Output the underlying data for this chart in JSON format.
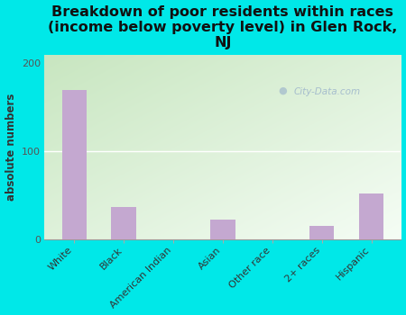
{
  "title": "Breakdown of poor residents within races\n(income below poverty level) in Glen Rock,\nNJ",
  "ylabel": "absolute numbers",
  "categories": [
    "White",
    "Black",
    "American Indian",
    "Asian",
    "Other race",
    "2+ races",
    "Hispanic"
  ],
  "values": [
    170,
    37,
    0,
    22,
    0,
    15,
    52
  ],
  "bar_color": "#c4a8d0",
  "background_color": "#00e8e8",
  "plot_bg_color_topleft": "#c8e6c0",
  "plot_bg_color_bottomright": "#f5fdf5",
  "ylim": [
    0,
    210
  ],
  "yticks": [
    0,
    100,
    200
  ],
  "watermark": "City-Data.com",
  "title_fontsize": 11.5,
  "label_fontsize": 8.5,
  "tick_fontsize": 8,
  "hline_color": "#cccccc"
}
